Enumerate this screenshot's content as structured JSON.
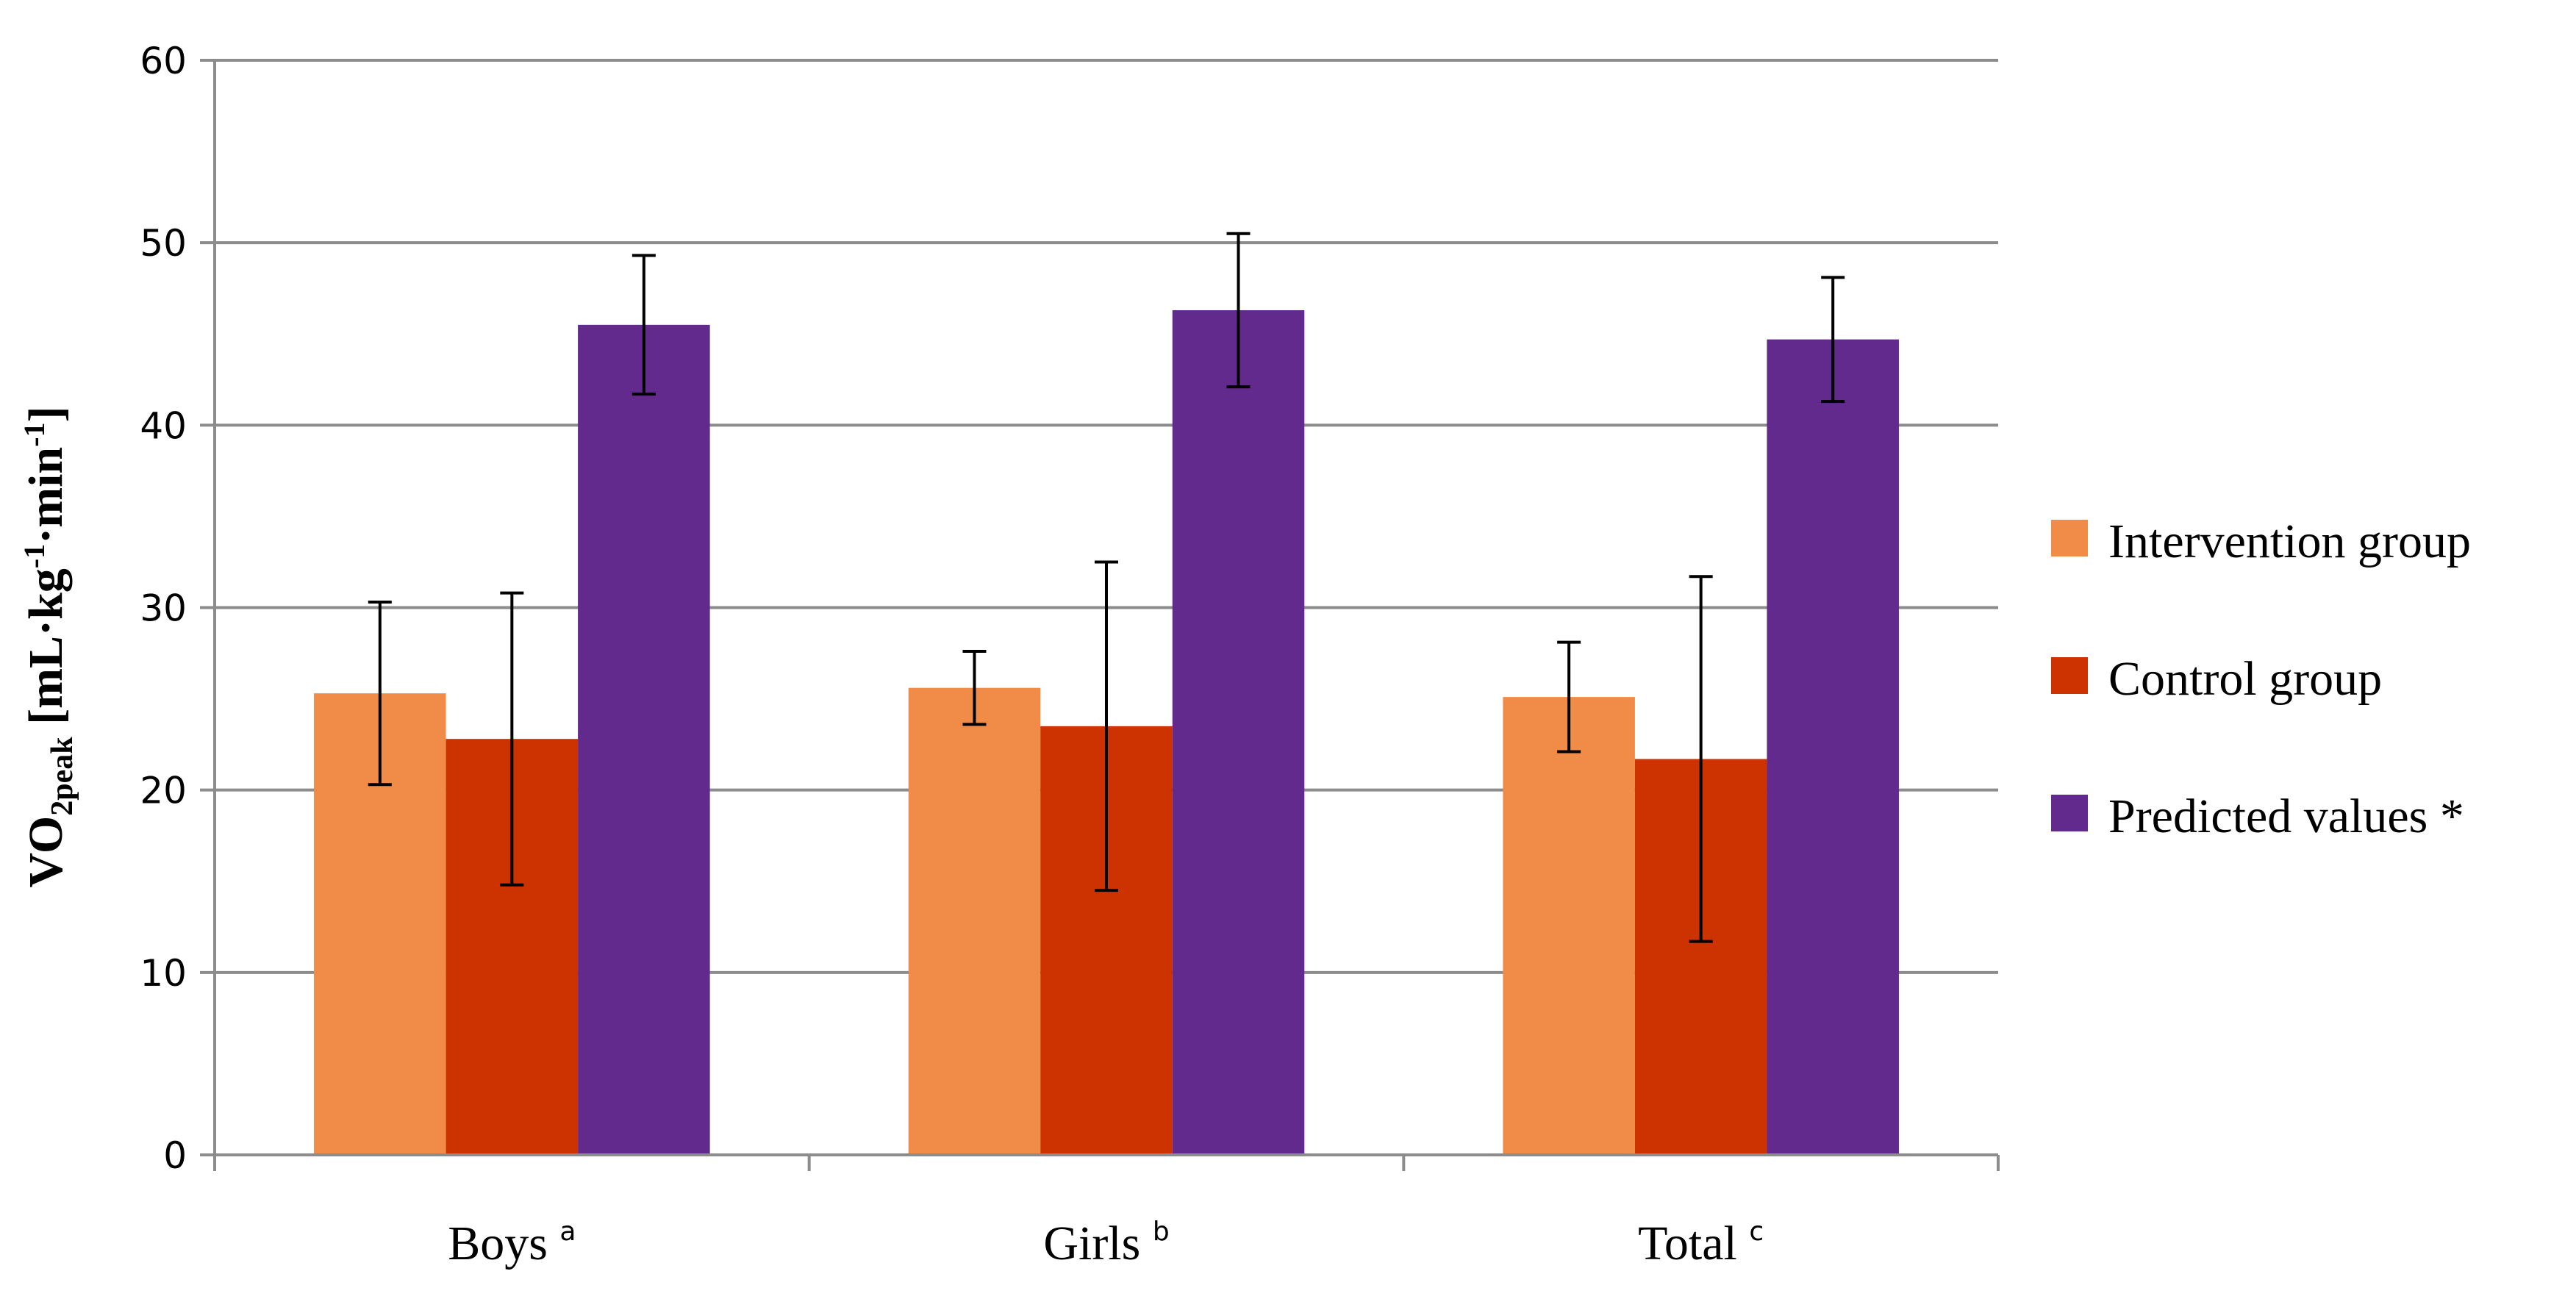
{
  "chart_data": {
    "type": "bar",
    "title": "",
    "xlabel": "",
    "ylabel": {
      "main": "VO",
      "sub": "2peak",
      "unit_open": " [mL·kg",
      "exp1": "-1",
      "unit_mid": "·min",
      "exp2": "-1",
      "unit_close": "]"
    },
    "ylim": [
      0,
      60
    ],
    "yticks": [
      0,
      10,
      20,
      30,
      40,
      50,
      60
    ],
    "grid": true,
    "legend_position": "right",
    "categories": [
      {
        "name": "Boys",
        "sup": "a"
      },
      {
        "name": "Girls",
        "sup": "b"
      },
      {
        "name": "Total",
        "sup": "c"
      }
    ],
    "series": [
      {
        "name": "Intervention group",
        "color": "#F08C48",
        "values": [
          25.3,
          25.6,
          25.1
        ],
        "errors": [
          5.0,
          2.0,
          3.0
        ]
      },
      {
        "name": "Control group",
        "color": "#CC3300",
        "values": [
          22.8,
          23.5,
          21.7
        ],
        "errors": [
          8.0,
          9.0,
          10.0
        ]
      },
      {
        "name": "Predicted values *",
        "color": "#622A8C",
        "values": [
          45.5,
          46.3,
          44.7
        ],
        "errors": [
          3.8,
          4.2,
          3.4
        ]
      }
    ]
  }
}
